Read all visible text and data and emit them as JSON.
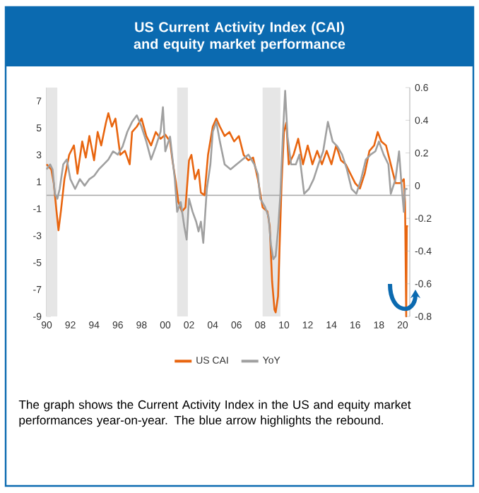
{
  "chart_data": {
    "type": "line",
    "title": "US Current Activity Index (CAI) and equity market performance",
    "annotations": [
      "The graph shows the Current Activity Index in the US and equity market performances year-on-year. The blue arrow highlights the rebound."
    ],
    "xlim": [
      1990,
      2020.6
    ],
    "xticks": [
      {
        "value": 1990,
        "label": "90"
      },
      {
        "value": 1992,
        "label": "92"
      },
      {
        "value": 1994,
        "label": "94"
      },
      {
        "value": 1996,
        "label": "96"
      },
      {
        "value": 1998,
        "label": "98"
      },
      {
        "value": 2000,
        "label": "00"
      },
      {
        "value": 2002,
        "label": "02"
      },
      {
        "value": 2004,
        "label": "04"
      },
      {
        "value": 2006,
        "label": "06"
      },
      {
        "value": 2008,
        "label": "08"
      },
      {
        "value": 2010,
        "label": "10"
      },
      {
        "value": 2012,
        "label": "12"
      },
      {
        "value": 2014,
        "label": "14"
      },
      {
        "value": 2016,
        "label": "16"
      },
      {
        "value": 2018,
        "label": "18"
      },
      {
        "value": 2020,
        "label": "20"
      }
    ],
    "ylim": [
      -9,
      8
    ],
    "yticks": [
      -9,
      -7,
      -5,
      -3,
      -1,
      1,
      3,
      5,
      7
    ],
    "y2lim": [
      -0.8,
      0.6
    ],
    "y2ticks": [
      -0.8,
      -0.6,
      -0.4,
      -0.2,
      0,
      0.2,
      0.4,
      0.6
    ],
    "legend": "bottom",
    "grid": false,
    "marker": "none",
    "line_style": "solid",
    "bands": [
      {
        "axis": "x",
        "from": 1990.0,
        "to": 1990.9,
        "color": "#e6e6e6"
      },
      {
        "axis": "x",
        "from": 2001.0,
        "to": 2001.9,
        "color": "#e6e6e6"
      },
      {
        "axis": "x",
        "from": 2008.2,
        "to": 2009.7,
        "color": "#e6e6e6"
      }
    ],
    "ref_lines": [
      {
        "axis": "y",
        "value": 0,
        "color": "#a6a6a6"
      }
    ],
    "series": [
      {
        "name": "US CAI",
        "color": "#e8650f",
        "x": [
          1990.0,
          1990.4,
          1990.6,
          1990.8,
          1991.0,
          1991.2,
          1991.5,
          1991.9,
          1992.3,
          1992.6,
          1993.0,
          1993.3,
          1993.6,
          1994.0,
          1994.3,
          1994.6,
          1995.0,
          1995.2,
          1995.5,
          1995.8,
          1996.2,
          1996.6,
          1997.0,
          1997.2,
          1997.6,
          1998.0,
          1998.4,
          1998.8,
          1999.2,
          1999.6,
          2000.0,
          2000.4,
          2000.6,
          2000.9,
          2001.1,
          2001.4,
          2001.7,
          2002.0,
          2002.2,
          2002.5,
          2002.8,
          2003.0,
          2003.3,
          2003.6,
          2004.0,
          2004.3,
          2004.6,
          2005.0,
          2005.4,
          2005.8,
          2006.2,
          2006.6,
          2007.0,
          2007.4,
          2007.8,
          2008.2,
          2008.6,
          2008.8,
          2009.0,
          2009.2,
          2009.3,
          2009.5,
          2009.6,
          2009.8,
          2010.0,
          2010.2,
          2010.4,
          2010.8,
          2011.2,
          2011.6,
          2012.0,
          2012.4,
          2012.8,
          2013.2,
          2013.6,
          2014.0,
          2014.4,
          2014.8,
          2015.2,
          2015.6,
          2016.0,
          2016.4,
          2016.8,
          2017.2,
          2017.6,
          2017.9,
          2018.2,
          2018.6,
          2019.0,
          2019.4,
          2019.8,
          2020.1,
          2020.2,
          2020.3,
          2020.35,
          2020.45
        ],
        "values": [
          2.3,
          1.9,
          0.9,
          -0.9,
          -2.6,
          -1.2,
          1.2,
          3.0,
          3.7,
          1.6,
          4.0,
          2.8,
          4.4,
          2.6,
          4.7,
          3.7,
          5.4,
          6.1,
          5.1,
          5.7,
          3.0,
          3.3,
          2.3,
          4.7,
          5.1,
          5.7,
          4.4,
          3.7,
          4.7,
          4.2,
          4.5,
          4.0,
          2.6,
          0.9,
          -0.5,
          -1.2,
          -0.9,
          2.6,
          3.0,
          1.2,
          1.9,
          0.2,
          0.0,
          3.0,
          5.1,
          5.7,
          5.1,
          4.4,
          4.7,
          4.0,
          4.4,
          3.0,
          2.6,
          2.8,
          1.2,
          -0.9,
          -1.2,
          -2.3,
          -6.4,
          -8.5,
          -8.7,
          -7.5,
          -4.7,
          0.9,
          4.7,
          5.4,
          2.3,
          3.0,
          4.2,
          2.3,
          3.7,
          2.3,
          3.3,
          2.3,
          3.3,
          2.3,
          3.7,
          2.6,
          2.3,
          1.6,
          0.9,
          0.5,
          1.6,
          3.3,
          3.7,
          4.7,
          4.0,
          3.7,
          2.3,
          0.9,
          0.9,
          1.2,
          -0.5,
          -9.0,
          -2.3,
          -2.3
        ]
      },
      {
        "name": "YoY",
        "color": "#a0a0a0",
        "axis": "y2",
        "x": [
          1990.0,
          1990.3,
          1990.5,
          1990.7,
          1990.9,
          1991.1,
          1991.4,
          1991.7,
          1992.0,
          1992.4,
          1992.8,
          1993.2,
          1993.6,
          1994.0,
          1994.4,
          1994.8,
          1995.2,
          1995.6,
          1996.0,
          1996.4,
          1996.8,
          1997.2,
          1997.6,
          1998.0,
          1998.4,
          1998.8,
          1999.2,
          1999.6,
          1999.8,
          2000.0,
          2000.4,
          2000.8,
          2001.0,
          2001.3,
          2001.6,
          2001.8,
          2002.0,
          2002.3,
          2002.6,
          2002.8,
          2003.0,
          2003.2,
          2003.5,
          2003.8,
          2004.0,
          2004.3,
          2004.6,
          2005.0,
          2005.5,
          2006.0,
          2006.5,
          2007.0,
          2007.5,
          2007.8,
          2008.0,
          2008.4,
          2008.7,
          2008.9,
          2009.1,
          2009.3,
          2009.5,
          2009.7,
          2009.9,
          2010.1,
          2010.3,
          2010.6,
          2011.0,
          2011.3,
          2011.7,
          2012.1,
          2012.5,
          2012.9,
          2013.3,
          2013.7,
          2014.1,
          2014.5,
          2014.9,
          2015.3,
          2015.7,
          2016.1,
          2016.5,
          2016.9,
          2017.3,
          2017.7,
          2018.0,
          2018.4,
          2018.8,
          2019.0,
          2019.4,
          2019.7,
          2019.9,
          2020.1,
          2020.2,
          2020.4
        ],
        "values": [
          0.1,
          0.13,
          0.1,
          -0.05,
          -0.08,
          -0.02,
          0.13,
          0.16,
          0.04,
          -0.02,
          0.04,
          0.0,
          0.04,
          0.06,
          0.1,
          0.13,
          0.16,
          0.21,
          0.19,
          0.24,
          0.33,
          0.39,
          0.43,
          0.36,
          0.27,
          0.16,
          0.24,
          0.33,
          0.48,
          0.21,
          0.3,
          0.04,
          -0.16,
          -0.1,
          -0.25,
          -0.33,
          -0.08,
          -0.16,
          -0.22,
          -0.28,
          -0.22,
          -0.35,
          -0.02,
          0.13,
          0.33,
          0.39,
          0.27,
          0.13,
          0.1,
          0.13,
          0.16,
          0.19,
          0.13,
          0.07,
          -0.08,
          -0.13,
          -0.19,
          -0.36,
          -0.45,
          -0.43,
          -0.27,
          -0.05,
          0.3,
          0.58,
          0.3,
          0.13,
          0.13,
          0.19,
          -0.05,
          -0.02,
          0.04,
          0.13,
          0.21,
          0.39,
          0.27,
          0.24,
          0.19,
          0.1,
          -0.02,
          -0.05,
          0.04,
          0.16,
          0.19,
          0.21,
          0.27,
          0.19,
          0.13,
          -0.05,
          0.04,
          0.21,
          0.01,
          -0.16,
          -0.02,
          -0.02
        ]
      }
    ]
  }
}
